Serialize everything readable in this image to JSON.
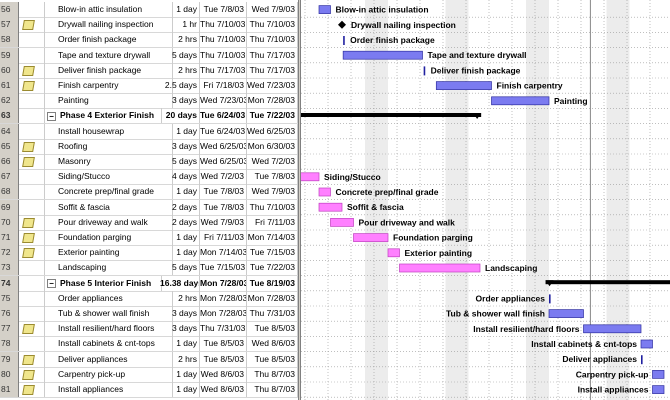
{
  "colors": {
    "task_bar": "#7b7bf0",
    "exterior_bar": "#ff80ff",
    "summary": "#000000",
    "weekend": "#ececec"
  },
  "timeline": {
    "unit": "days",
    "origin": "Tue 7/8/03",
    "weekend_offsets": [
      4,
      5,
      11,
      12,
      18,
      19,
      25,
      26
    ],
    "status_line_offset": 23.6
  },
  "tasks": [
    {
      "id": "56",
      "name": "Blow-in attic insulation",
      "duration": "1 day",
      "start": "Tue 7/8/03",
      "finish": "Wed 7/9/03",
      "note": false,
      "summary": false,
      "bar": {
        "type": "task",
        "from": 0,
        "to": 1,
        "color": "blue"
      },
      "label_side": "right"
    },
    {
      "id": "57",
      "name": "Drywall nailing inspection",
      "duration": "1 hr",
      "start": "Thu 7/10/03",
      "finish": "Thu 7/10/03",
      "note": true,
      "summary": false,
      "bar": {
        "type": "milestone",
        "from": 2,
        "to": 2
      },
      "label_side": "right"
    },
    {
      "id": "58",
      "name": "Order finish package",
      "duration": "2 hrs",
      "start": "Thu 7/10/03",
      "finish": "Thu 7/10/03",
      "note": false,
      "summary": false,
      "bar": {
        "type": "tick",
        "from": 2.1,
        "to": 2.1
      },
      "label_side": "right"
    },
    {
      "id": "59",
      "name": "Tape and texture drywall",
      "duration": "5 days",
      "start": "Thu 7/10/03",
      "finish": "Thu 7/17/03",
      "note": false,
      "summary": false,
      "bar": {
        "type": "task",
        "from": 2.1,
        "to": 9,
        "color": "blue"
      },
      "label_side": "right"
    },
    {
      "id": "60",
      "name": "Deliver finish package",
      "duration": "2 hrs",
      "start": "Thu 7/17/03",
      "finish": "Thu 7/17/03",
      "note": true,
      "summary": false,
      "bar": {
        "type": "tick",
        "from": 9.1,
        "to": 9.1
      },
      "label_side": "right"
    },
    {
      "id": "61",
      "name": "Finish carpentry",
      "duration": "2.5 days",
      "start": "Fri 7/18/03",
      "finish": "Wed 7/23/03",
      "note": true,
      "summary": false,
      "bar": {
        "type": "task",
        "from": 10.2,
        "to": 15,
        "color": "blue"
      },
      "label_side": "right"
    },
    {
      "id": "62",
      "name": "Painting",
      "duration": "3 days",
      "start": "Wed 7/23/03",
      "finish": "Mon 7/28/03",
      "note": false,
      "summary": false,
      "bar": {
        "type": "task",
        "from": 15,
        "to": 20,
        "color": "blue"
      },
      "label_side": "right"
    },
    {
      "id": "63",
      "name": "Phase 4 Exterior Finish",
      "duration": "20 days",
      "start": "Tue 6/24/03",
      "finish": "Tue 7/22/03",
      "note": false,
      "summary": true,
      "bar": {
        "type": "summary",
        "from": -5,
        "to": 14.1
      },
      "label_side": "none"
    },
    {
      "id": "64",
      "name": "Install housewrap",
      "duration": "1 day",
      "start": "Tue 6/24/03",
      "finish": "Wed 6/25/03",
      "note": false,
      "summary": false,
      "bar": null,
      "label_side": "none"
    },
    {
      "id": "65",
      "name": "Roofing",
      "duration": "3 days",
      "start": "Wed 6/25/03",
      "finish": "Mon 6/30/03",
      "note": true,
      "summary": false,
      "bar": null,
      "label_side": "none"
    },
    {
      "id": "66",
      "name": "Masonry",
      "duration": "5 days",
      "start": "Wed 6/25/03",
      "finish": "Wed 7/2/03",
      "note": true,
      "summary": false,
      "bar": null,
      "label_side": "none"
    },
    {
      "id": "67",
      "name": "Siding/Stucco",
      "duration": "4 days",
      "start": "Wed 7/2/03",
      "finish": "Tue 7/8/03",
      "note": false,
      "summary": false,
      "bar": {
        "type": "task",
        "from": -1.6,
        "to": 0,
        "color": "pink"
      },
      "label_side": "right"
    },
    {
      "id": "68",
      "name": "Concrete prep/final grade",
      "duration": "1 day",
      "start": "Tue 7/8/03",
      "finish": "Wed 7/9/03",
      "note": false,
      "summary": false,
      "bar": {
        "type": "task",
        "from": 0,
        "to": 1,
        "color": "pink"
      },
      "label_side": "right"
    },
    {
      "id": "69",
      "name": "Soffit & fascia",
      "duration": "2 days",
      "start": "Tue 7/8/03",
      "finish": "Thu 7/10/03",
      "note": false,
      "summary": false,
      "bar": {
        "type": "task",
        "from": 0,
        "to": 2,
        "color": "pink"
      },
      "label_side": "right"
    },
    {
      "id": "70",
      "name": "Pour driveway and walk",
      "duration": "2 days",
      "start": "Wed 7/9/03",
      "finish": "Fri 7/11/03",
      "note": true,
      "summary": false,
      "bar": {
        "type": "task",
        "from": 1,
        "to": 3,
        "color": "pink"
      },
      "label_side": "right"
    },
    {
      "id": "71",
      "name": "Foundation parging",
      "duration": "1 day",
      "start": "Fri 7/11/03",
      "finish": "Mon 7/14/03",
      "note": true,
      "summary": false,
      "bar": {
        "type": "task",
        "from": 3,
        "to": 6,
        "color": "pink"
      },
      "label_side": "right"
    },
    {
      "id": "72",
      "name": "Exterior painting",
      "duration": "1 day",
      "start": "Mon 7/14/03",
      "finish": "Tue 7/15/03",
      "note": true,
      "summary": false,
      "bar": {
        "type": "task",
        "from": 6,
        "to": 7,
        "color": "pink"
      },
      "label_side": "right"
    },
    {
      "id": "73",
      "name": "Landscaping",
      "duration": "5 days",
      "start": "Tue 7/15/03",
      "finish": "Tue 7/22/03",
      "note": false,
      "summary": false,
      "bar": {
        "type": "task",
        "from": 7,
        "to": 14,
        "color": "pink"
      },
      "label_side": "right"
    },
    {
      "id": "74",
      "name": "Phase 5 Interior Finish",
      "duration": "16.38 days",
      "start": "Mon 7/28/03",
      "finish": "Tue 8/19/03",
      "note": false,
      "summary": true,
      "bar": {
        "type": "summary",
        "from": 19.7,
        "to": 45
      },
      "label_side": "none"
    },
    {
      "id": "75",
      "name": "Order appliances",
      "duration": "2 hrs",
      "start": "Mon 7/28/03",
      "finish": "Mon 7/28/03",
      "note": false,
      "summary": false,
      "bar": {
        "type": "tick",
        "from": 20,
        "to": 20
      },
      "label_side": "left"
    },
    {
      "id": "76",
      "name": "Tub & shower wall finish",
      "duration": "3 days",
      "start": "Mon 7/28/03",
      "finish": "Thu 7/31/03",
      "note": false,
      "summary": false,
      "bar": {
        "type": "task",
        "from": 20,
        "to": 23,
        "color": "blue"
      },
      "label_side": "left"
    },
    {
      "id": "77",
      "name": "Install resilient/hard floors",
      "duration": "3 days",
      "start": "Thu 7/31/03",
      "finish": "Tue 8/5/03",
      "note": true,
      "summary": false,
      "bar": {
        "type": "task",
        "from": 23,
        "to": 28,
        "color": "blue"
      },
      "label_side": "left"
    },
    {
      "id": "78",
      "name": "Install cabinets & cnt-tops",
      "duration": "1 day",
      "start": "Tue 8/5/03",
      "finish": "Wed 8/6/03",
      "note": false,
      "summary": false,
      "bar": {
        "type": "task",
        "from": 28,
        "to": 29,
        "color": "blue"
      },
      "label_side": "left"
    },
    {
      "id": "79",
      "name": "Deliver appliances",
      "duration": "2 hrs",
      "start": "Tue 8/5/03",
      "finish": "Tue 8/5/03",
      "note": true,
      "summary": false,
      "bar": {
        "type": "tick",
        "from": 28,
        "to": 28
      },
      "label_side": "left"
    },
    {
      "id": "80",
      "name": "Carpentry pick-up",
      "duration": "1 day",
      "start": "Wed 8/6/03",
      "finish": "Thu 8/7/03",
      "note": true,
      "summary": false,
      "bar": {
        "type": "task",
        "from": 29,
        "to": 30,
        "color": "blue"
      },
      "label_side": "left"
    },
    {
      "id": "81",
      "name": "Install appliances",
      "duration": "1 day",
      "start": "Wed 8/6/03",
      "finish": "Thu 8/7/03",
      "note": true,
      "summary": false,
      "bar": {
        "type": "task",
        "from": 29,
        "to": 30,
        "color": "blue"
      },
      "label_side": "left"
    }
  ]
}
